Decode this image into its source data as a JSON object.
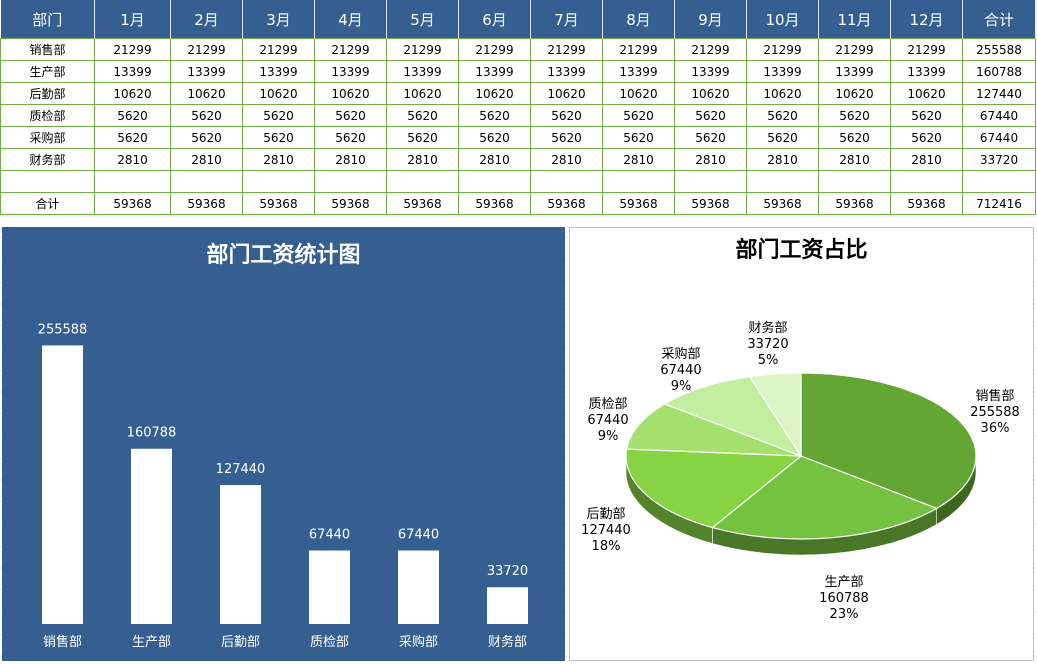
{
  "table": {
    "headers": [
      "部门",
      "1月",
      "2月",
      "3月",
      "4月",
      "5月",
      "6月",
      "7月",
      "8月",
      "9月",
      "10月",
      "11月",
      "12月",
      "合计"
    ],
    "rows": [
      {
        "dept": "销售部",
        "values": [
          "21299",
          "21299",
          "21299",
          "21299",
          "21299",
          "21299",
          "21299",
          "21299",
          "21299",
          "21299",
          "21299",
          "21299",
          "255588"
        ]
      },
      {
        "dept": "生产部",
        "values": [
          "13399",
          "13399",
          "13399",
          "13399",
          "13399",
          "13399",
          "13399",
          "13399",
          "13399",
          "13399",
          "13399",
          "13399",
          "160788"
        ]
      },
      {
        "dept": "后勤部",
        "values": [
          "10620",
          "10620",
          "10620",
          "10620",
          "10620",
          "10620",
          "10620",
          "10620",
          "10620",
          "10620",
          "10620",
          "10620",
          "127440"
        ]
      },
      {
        "dept": "质检部",
        "values": [
          "5620",
          "5620",
          "5620",
          "5620",
          "5620",
          "5620",
          "5620",
          "5620",
          "5620",
          "5620",
          "5620",
          "5620",
          "67440"
        ]
      },
      {
        "dept": "采购部",
        "values": [
          "5620",
          "5620",
          "5620",
          "5620",
          "5620",
          "5620",
          "5620",
          "5620",
          "5620",
          "5620",
          "5620",
          "5620",
          "67440"
        ]
      },
      {
        "dept": "财务部",
        "values": [
          "2810",
          "2810",
          "2810",
          "2810",
          "2810",
          "2810",
          "2810",
          "2810",
          "2810",
          "2810",
          "2810",
          "2810",
          "33720"
        ]
      },
      {
        "dept": "",
        "values": [
          "",
          "",
          "",
          "",
          "",
          "",
          "",
          "",
          "",
          "",
          "",
          "",
          ""
        ]
      },
      {
        "dept": "合计",
        "values": [
          "59368",
          "59368",
          "59368",
          "59368",
          "59368",
          "59368",
          "59368",
          "59368",
          "59368",
          "59368",
          "59368",
          "59368",
          "712416"
        ]
      }
    ]
  },
  "colors": {
    "header_bg": "#355f91",
    "grid_border": "#70ad47",
    "bar_bg": "#355f91",
    "bar_fill": "#ffffff",
    "pie_slices": [
      "#63a633",
      "#74c23f",
      "#86d443",
      "#a3e06e",
      "#c3ed9f",
      "#dbf5c6"
    ]
  },
  "chart_data": [
    {
      "type": "bar",
      "title": "部门工资统计图",
      "categories": [
        "销售部",
        "生产部",
        "后勤部",
        "质检部",
        "采购部",
        "财务部"
      ],
      "values": [
        255588,
        160788,
        127440,
        67440,
        67440,
        33720
      ],
      "ylim": [
        0,
        300000
      ],
      "grid": false,
      "legend": "none"
    },
    {
      "type": "pie",
      "title": "部门工资占比",
      "categories": [
        "销售部",
        "生产部",
        "后勤部",
        "质检部",
        "采购部",
        "财务部"
      ],
      "values": [
        255588,
        160788,
        127440,
        67440,
        67440,
        33720
      ],
      "percent_labels": [
        "36%",
        "23%",
        "18%",
        "9%",
        "9%",
        "5%"
      ],
      "legend": "none"
    }
  ]
}
